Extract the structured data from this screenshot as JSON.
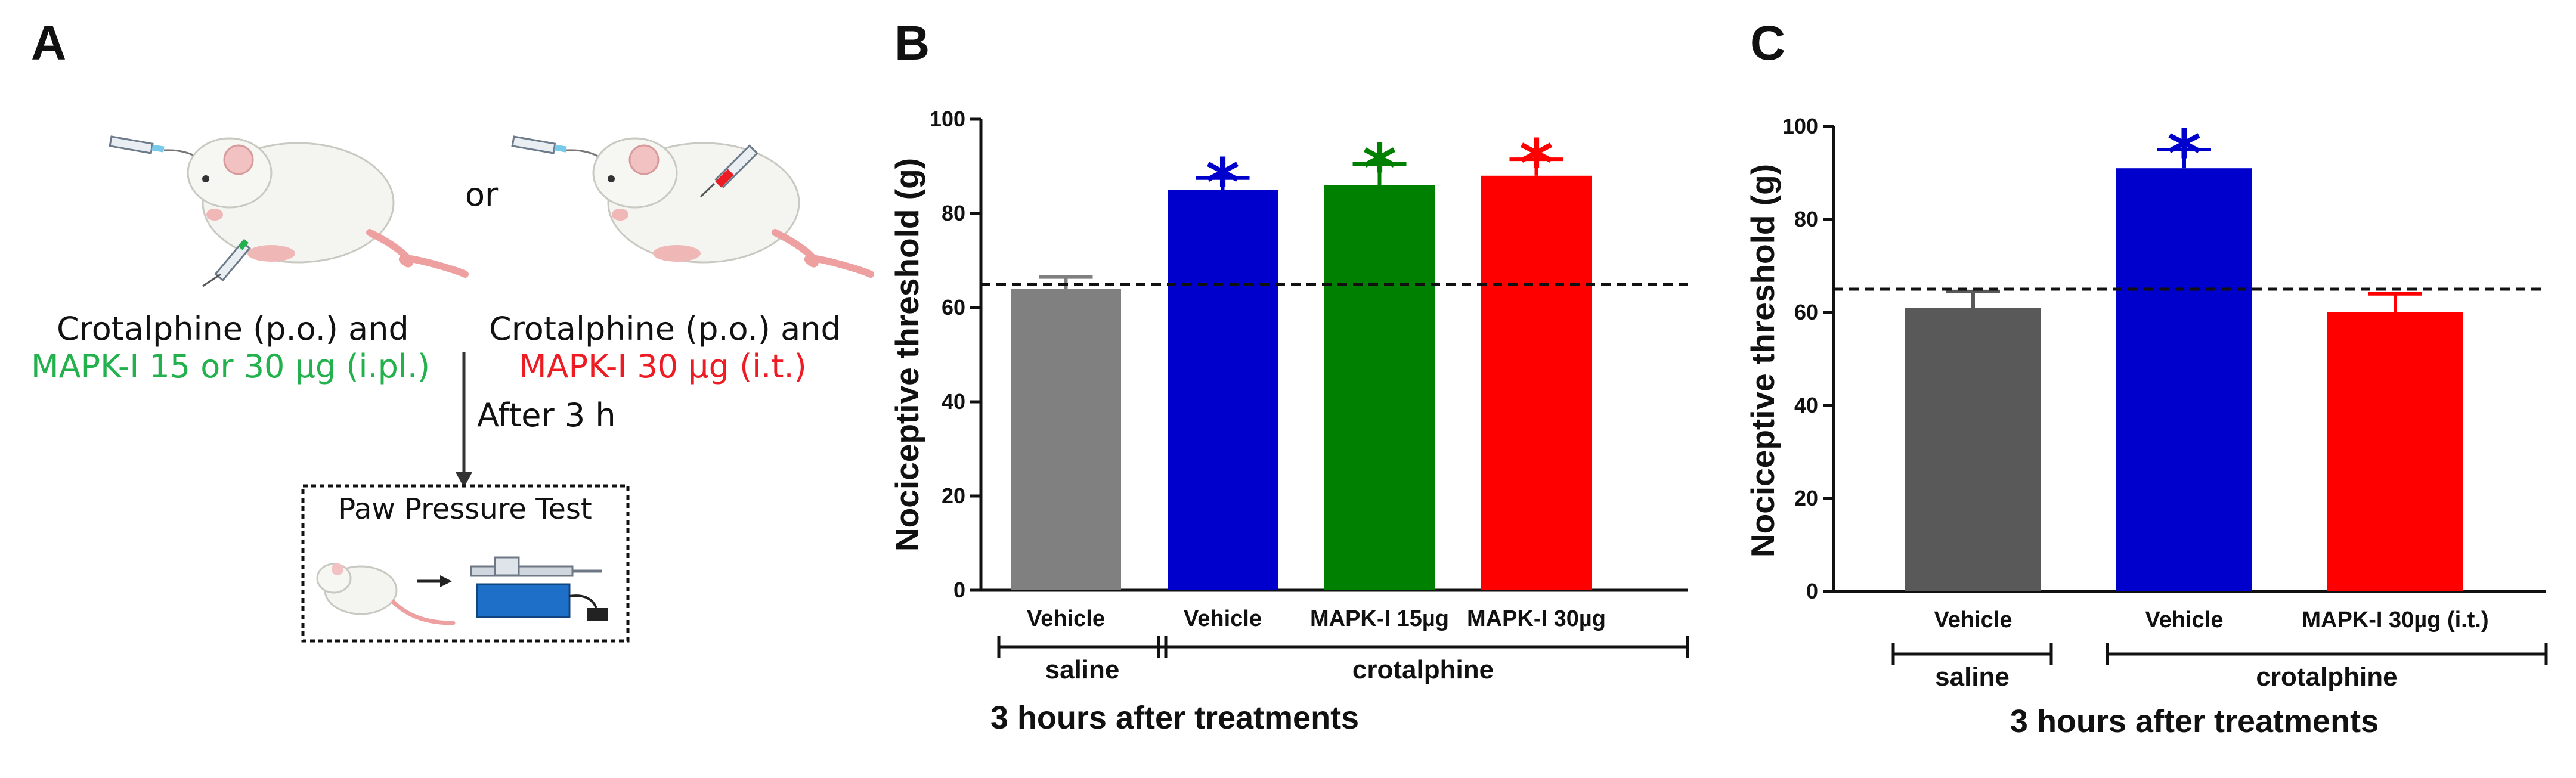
{
  "panels": {
    "a": {
      "label": "A",
      "or_text": "or",
      "left_caption_line1": "Crotalphine (p.o.) and",
      "left_caption_line2": "MAPK-I 15 or 30 µg (i.pl.)",
      "right_caption_line1": "Crotalphine (p.o.) and",
      "right_caption_line2": "MAPK-I 30 µg (i.t.)",
      "after_text": "After 3 h",
      "test_title": "Paw Pressure Test",
      "colors": {
        "green": "#22b14c",
        "red": "#ed1c24"
      }
    },
    "b": {
      "label": "B"
    },
    "c": {
      "label": "C"
    }
  },
  "chart_data": [
    {
      "type": "bar",
      "panel": "B",
      "ylabel": "Nociceptive threshold (g)",
      "xlabel": "3 hours after treatments",
      "ylim": [
        0,
        100
      ],
      "yticks": [
        "0",
        "20",
        "40",
        "60",
        "80",
        "100"
      ],
      "reference_line": 65,
      "categories": [
        "Vehicle",
        "Vehicle",
        "MAPK-I 15µg",
        "MAPK-I 30µg"
      ],
      "values": [
        64,
        85,
        86,
        88
      ],
      "errors": [
        2.5,
        2.5,
        4.5,
        3.5
      ],
      "colors": [
        "#808080",
        "#0000cc",
        "#008000",
        "#ff0000"
      ],
      "significance": [
        "",
        "*",
        "*",
        "*"
      ],
      "groups": [
        {
          "label": "saline",
          "from": 0,
          "to": 0
        },
        {
          "label": "crotalphine",
          "from": 1,
          "to": 3
        }
      ]
    },
    {
      "type": "bar",
      "panel": "C",
      "ylabel": "Nociceptive threshold (g)",
      "xlabel": "3 hours after treatments",
      "ylim": [
        0,
        100
      ],
      "yticks": [
        "0",
        "20",
        "40",
        "60",
        "80",
        "100"
      ],
      "reference_line": 65,
      "categories": [
        "Vehicle",
        "Vehicle",
        "MAPK-I 30µg (i.t.)"
      ],
      "values": [
        61,
        91,
        60
      ],
      "errors": [
        3.5,
        4,
        4
      ],
      "colors": [
        "#595959",
        "#0000cc",
        "#ff0000"
      ],
      "significance": [
        "",
        "*",
        ""
      ],
      "groups": [
        {
          "label": "saline",
          "from": 0,
          "to": 0
        },
        {
          "label": "crotalphine",
          "from": 1,
          "to": 2
        }
      ]
    }
  ]
}
